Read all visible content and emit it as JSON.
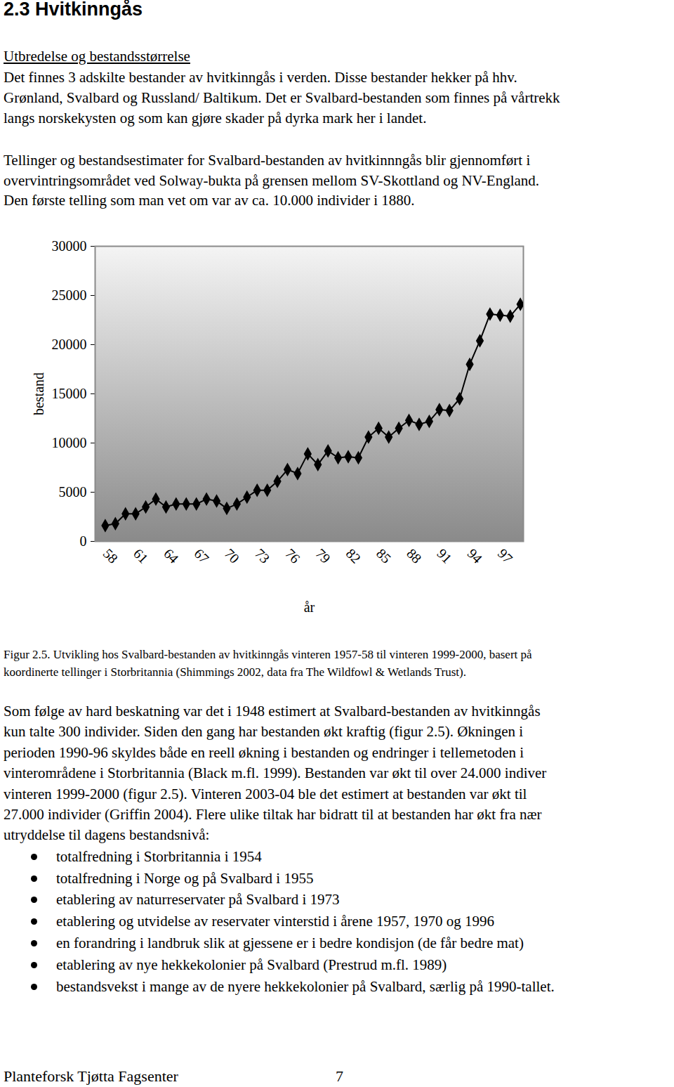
{
  "heading": "2.3 Hvitkinngås",
  "subheading": "Utbredelse og bestandsstørrelse",
  "paragraphs_before": [
    [
      "Det finnes 3 adskilte bestander av hvitkinngås i verden. Disse bestander hekker på hhv.",
      "Grønland, Svalbard og Russland/ Baltikum. Det er Svalbard-bestanden som finnes på vårtrekk",
      "langs norskekysten og som kan gjøre skader på dyrka mark her i landet."
    ],
    [
      "Tellinger og bestandsestimater for Svalbard-bestanden av hvitkinnngås blir gjennomført i",
      "overvintringsområdet ved Solway-bukta på grensen mellom SV-Skottland og NV-England.",
      "Den første telling som man vet om var av ca. 10.000 individer i 1880."
    ]
  ],
  "chart_data": {
    "type": "line",
    "x_label": "år",
    "y_label": "bestand",
    "color": "#000000",
    "marker": "diamond",
    "x": [
      58,
      59,
      60,
      61,
      62,
      63,
      64,
      65,
      66,
      67,
      68,
      69,
      70,
      71,
      72,
      73,
      74,
      75,
      76,
      77,
      78,
      79,
      80,
      81,
      82,
      83,
      84,
      85,
      86,
      87,
      88,
      89,
      90,
      91,
      92,
      93,
      94,
      95,
      96,
      97,
      98,
      99
    ],
    "values": [
      1600,
      1800,
      2800,
      2800,
      3500,
      4300,
      3500,
      3800,
      3800,
      3800,
      4300,
      4100,
      3350,
      3800,
      4500,
      5200,
      5200,
      6100,
      7300,
      6900,
      8900,
      7800,
      9200,
      8500,
      8600,
      8500,
      10600,
      11500,
      10600,
      11500,
      12300,
      11900,
      12200,
      13400,
      13300,
      14500,
      18000,
      20400,
      23100,
      23000,
      22900,
      24100
    ],
    "xlim": [
      57,
      99.3
    ],
    "xticks": [
      58,
      61,
      64,
      67,
      70,
      73,
      76,
      79,
      82,
      85,
      88,
      91,
      94,
      97
    ],
    "ylim": [
      0,
      30000
    ],
    "yticks": [
      0,
      5000,
      10000,
      15000,
      20000,
      25000,
      30000
    ]
  },
  "caption": [
    "Figur 2.5. Utvikling hos Svalbard-bestanden av hvitkinngås vinteren 1957-58 til vinteren 1999-2000, basert på",
    "koordinerte tellinger i Storbritannia (Shimmings 2002, data fra The Wildfowl & Wetlands Trust)."
  ],
  "paragraphs_after": [
    [
      "Som følge av hard beskatning var det i 1948 estimert at Svalbard-bestanden av hvitkinngås",
      "kun talte 300 individer. Siden den gang har bestanden økt kraftig (figur 2.5). Økningen i",
      "perioden 1990-96 skyldes både en reell økning i bestanden og endringer i tellemetoden i",
      "vinterområdene i Storbritannia (Black m.fl. 1999). Bestanden var økt til over 24.000 indiver",
      "vinteren 1999-2000 (figur  2.5). Vinteren 2003-04 ble det estimert at bestanden var økt til",
      "27.000 individer (Griffin 2004). Flere ulike tiltak har bidratt til at bestanden har økt fra nær",
      "utryddelse til dagens bestandsnivå:"
    ]
  ],
  "bullets": [
    "totalfredning i Storbritannia i 1954",
    "totalfredning i Norge og på Svalbard i 1955",
    "etablering av naturreservater på Svalbard i 1973",
    "etablering og utvidelse av reservater vinterstid i årene 1957, 1970 og 1996",
    "en forandring i landbruk slik at gjessene er i bedre kondisjon (de får bedre mat)",
    "etablering av nye hekkekolonier på Svalbard (Prestrud m.fl. 1989)",
    "bestandsvekst i mange av de nyere hekkekolonier på Svalbard, særlig på 1990-tallet."
  ],
  "footer": {
    "left": "Planteforsk Tjøtta Fagsenter",
    "page": 7
  }
}
